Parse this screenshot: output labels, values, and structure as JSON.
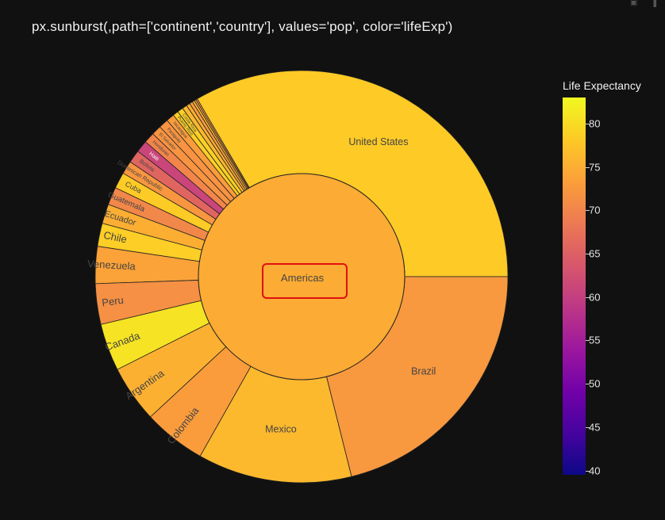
{
  "title": "px.sunburst(,path=['continent','country'], values='pop', color='lifeExp')",
  "toolbar": {
    "icons": [
      "camera-icon",
      "bar-chart-icon"
    ]
  },
  "colorbar": {
    "title": "Life Expectancy",
    "ticks": [
      "80",
      "75",
      "70",
      "65",
      "60",
      "55",
      "50",
      "45",
      "40"
    ],
    "colorscale": [
      "#0d0887",
      "#46039f",
      "#7201a8",
      "#9c179e",
      "#bd3786",
      "#d8576b",
      "#ed7953",
      "#fb9f3a",
      "#fdca26",
      "#f0f921"
    ],
    "range": [
      39.5,
      83
    ]
  },
  "chart_data": {
    "type": "sunburst",
    "path": [
      "continent",
      "country"
    ],
    "values_field": "pop",
    "color_field": "lifeExp",
    "root": {
      "label": "Americas",
      "lifeExp": 74.7
    },
    "children": [
      {
        "label": "United States",
        "pop": 301.1,
        "lifeExp": 78.2
      },
      {
        "label": "",
        "pop": 1.1,
        "lifeExp": 72.0
      },
      {
        "label": "",
        "pop": 1.2,
        "lifeExp": 74.0
      },
      {
        "label": "",
        "pop": 1.6,
        "lifeExp": 76.0
      },
      {
        "label": "",
        "pop": 2.3,
        "lifeExp": 73.0
      },
      {
        "label": "",
        "pop": 2.5,
        "lifeExp": 75.0
      },
      {
        "label": "",
        "pop": 3.4,
        "lifeExp": 76.0
      },
      {
        "label": "Costa Rica",
        "pop": 4.1,
        "lifeExp": 78.8
      },
      {
        "label": "Puerto Rico",
        "pop": 3.9,
        "lifeExp": 78.7
      },
      {
        "label": "Nicaragua",
        "pop": 5.7,
        "lifeExp": 72.9
      },
      {
        "label": "Paraguay",
        "pop": 6.7,
        "lifeExp": 71.8
      },
      {
        "label": "El Salvador",
        "pop": 6.9,
        "lifeExp": 71.9
      },
      {
        "label": "Honduras",
        "pop": 7.5,
        "lifeExp": 70.2
      },
      {
        "label": "Haiti",
        "pop": 8.5,
        "lifeExp": 60.9
      },
      {
        "label": "Bolivia",
        "pop": 9.1,
        "lifeExp": 65.6
      },
      {
        "label": "Dominican Republic",
        "pop": 9.3,
        "lifeExp": 72.2
      },
      {
        "label": "Cuba",
        "pop": 11.4,
        "lifeExp": 78.3
      },
      {
        "label": "Guatemala",
        "pop": 12.6,
        "lifeExp": 70.3
      },
      {
        "label": "Ecuador",
        "pop": 13.8,
        "lifeExp": 75.0
      },
      {
        "label": "Chile",
        "pop": 16.3,
        "lifeExp": 78.6
      },
      {
        "label": "Venezuela",
        "pop": 26.1,
        "lifeExp": 73.7
      },
      {
        "label": "Peru",
        "pop": 28.7,
        "lifeExp": 71.4
      },
      {
        "label": "Canada",
        "pop": 33.4,
        "lifeExp": 80.7
      },
      {
        "label": "Argentina",
        "pop": 40.3,
        "lifeExp": 75.3
      },
      {
        "label": "Colombia",
        "pop": 44.2,
        "lifeExp": 72.9
      },
      {
        "label": "Mexico",
        "pop": 108.7,
        "lifeExp": 76.2
      },
      {
        "label": "Brazil",
        "pop": 190.0,
        "lifeExp": 72.4
      }
    ]
  }
}
